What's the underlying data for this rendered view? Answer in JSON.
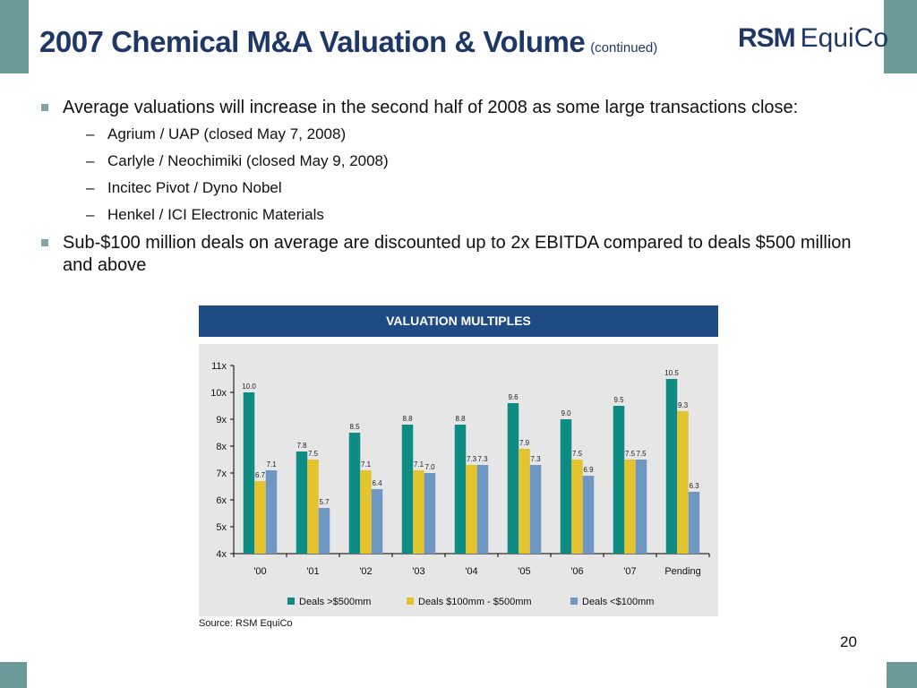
{
  "slide": {
    "title": "2007 Chemical M&A Valuation & Volume",
    "title_suffix": "(continued)",
    "logo_rsm": "RSM",
    "logo_equico": "EquiCo",
    "page_number": "20",
    "source": "Source: RSM EquiCo",
    "chart_header": "VALUATION MULTIPLES",
    "colors": {
      "header_band": "#6b9a98",
      "title_text": "#1f3766",
      "chart_header": "#1f4b85"
    }
  },
  "bullets": [
    {
      "text": "Average valuations will increase in the second half of 2008 as some large transactions close:",
      "sub": [
        "Agrium / UAP (closed May 7, 2008)",
        "Carlyle / Neochimiki (closed May 9, 2008)",
        "Incitec Pivot / Dyno Nobel",
        "Henkel / ICI Electronic Materials"
      ]
    },
    {
      "text": "Sub-$100 million deals on average are discounted up to 2x EBITDA compared to deals $500 million and above",
      "sub": []
    }
  ],
  "chart_data": {
    "type": "bar",
    "title": "VALUATION MULTIPLES",
    "categories": [
      "'00",
      "'01",
      "'02",
      "'03",
      "'04",
      "'05",
      "'06",
      "'07",
      "Pending"
    ],
    "series": [
      {
        "name": "Deals >$500mm",
        "color": "#0e8c84",
        "values": [
          10.0,
          7.8,
          8.5,
          8.8,
          8.8,
          9.6,
          9.0,
          9.5,
          10.5
        ]
      },
      {
        "name": "Deals $100mm - $500mm",
        "color": "#e3c42f",
        "values": [
          6.7,
          7.5,
          7.1,
          7.1,
          7.3,
          7.9,
          7.5,
          7.5,
          9.3
        ]
      },
      {
        "name": "Deals <$100mm",
        "color": "#6e97c4",
        "values": [
          7.1,
          5.7,
          6.4,
          7.0,
          7.3,
          7.3,
          6.9,
          7.5,
          6.3
        ]
      }
    ],
    "ylim": [
      4,
      11
    ],
    "yticks": [
      4,
      5,
      6,
      7,
      8,
      9,
      10,
      11
    ],
    "ytick_suffix": "x",
    "legend_position": "bottom",
    "grid": false
  }
}
